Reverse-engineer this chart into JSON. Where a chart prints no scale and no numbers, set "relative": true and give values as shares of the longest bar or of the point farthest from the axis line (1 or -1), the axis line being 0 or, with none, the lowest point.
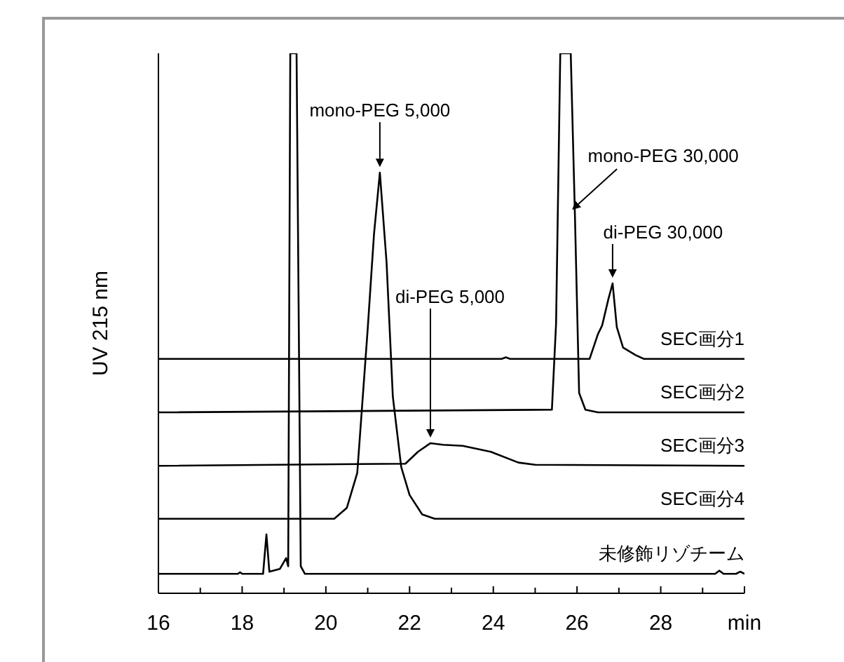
{
  "chart_data": {
    "type": "line",
    "relative": true,
    "ylabel": "UV 215 nm",
    "xlim": [
      16,
      30
    ],
    "xticks": [
      16,
      {
        "value": 17,
        "label": null
      },
      18,
      {
        "value": 19,
        "label": null
      },
      20,
      {
        "value": 21,
        "label": null
      },
      22,
      {
        "value": 23,
        "label": null
      },
      24,
      {
        "value": 25,
        "label": null
      },
      26,
      {
        "value": 27,
        "label": null
      },
      28,
      {
        "value": 29,
        "label": null
      },
      {
        "value": 30,
        "label": "min"
      }
    ],
    "grid": false,
    "legend": false,
    "marker": "none",
    "line_style": "solid",
    "series": [
      {
        "name": "SEC画分1",
        "color": "#000000",
        "x": [
          16,
          24.2,
          24.3,
          24.4,
          26.3,
          26.5,
          26.6,
          26.75,
          26.85,
          26.95,
          27.1,
          27.4,
          27.6,
          30
        ],
        "values": [
          0.434,
          0.434,
          0.437,
          0.434,
          0.434,
          0.48,
          0.496,
          0.545,
          0.574,
          0.493,
          0.455,
          0.441,
          0.434,
          0.434
        ]
      },
      {
        "name": "SEC画分2",
        "color": "#000000",
        "x": [
          16,
          25.4,
          25.5,
          25.6,
          25.85,
          25.95,
          26.05,
          26.2,
          26.5,
          30
        ],
        "values": [
          0.335,
          0.34,
          0.5,
          1,
          1,
          0.7,
          0.371,
          0.34,
          0.335,
          0.335
        ]
      },
      {
        "name": "SEC画分3",
        "color": "#000000",
        "x": [
          16,
          21.9,
          22.2,
          22.5,
          22.8,
          23.27,
          23.94,
          24.6,
          25,
          30
        ],
        "values": [
          0.236,
          0.24,
          0.262,
          0.278,
          0.275,
          0.273,
          0.262,
          0.242,
          0.238,
          0.236
        ]
      },
      {
        "name": "SEC画分4",
        "color": "#000000",
        "x": [
          16,
          20.2,
          20.5,
          20.75,
          21,
          21.15,
          21.29,
          21.45,
          21.6,
          21.8,
          22,
          22.3,
          22.6,
          30
        ],
        "values": [
          0.138,
          0.138,
          0.158,
          0.223,
          0.49,
          0.665,
          0.779,
          0.613,
          0.364,
          0.234,
          0.182,
          0.146,
          0.138,
          0.138
        ]
      },
      {
        "name": "未修飾リゾチーム",
        "color": "#000000",
        "x": [
          16,
          17.9,
          17.95,
          18.0,
          18.5,
          18.58,
          18.65,
          18.9,
          19.05,
          19.1,
          19.15,
          19.3,
          19.4,
          19.5,
          29.3,
          29.4,
          29.5,
          29.8,
          29.9,
          30
        ],
        "values": [
          0.036,
          0.036,
          0.039,
          0.036,
          0.036,
          0.109,
          0.04,
          0.045,
          0.065,
          0.05,
          1,
          1,
          0.05,
          0.036,
          0.036,
          0.042,
          0.036,
          0.036,
          0.04,
          0.036
        ]
      }
    ],
    "annotations": [
      {
        "text": "mono-PEG 5,000",
        "x": 21.29,
        "y": 0.779
      },
      "di-PEG 5,000",
      {
        "text": "mono-PEG 30,000",
        "x": 25.95,
        "y": 0.7
      },
      {
        "text": "di-PEG 30,000",
        "x": 26.85,
        "y": 0.574
      }
    ]
  }
}
